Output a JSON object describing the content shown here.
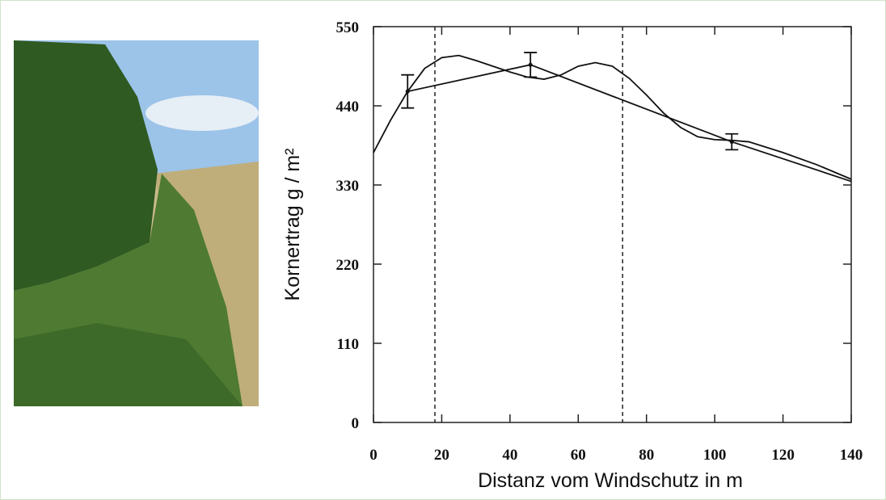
{
  "chart_data": {
    "type": "line",
    "xlabel": "Distanz vom Windschutz in m",
    "ylabel": "Kornertrag g / m²",
    "xlim": [
      0,
      140
    ],
    "xticks": [
      0,
      20,
      40,
      60,
      80,
      100,
      120,
      140
    ],
    "ylim": [
      0,
      550
    ],
    "yticks": [
      0,
      110,
      220,
      330,
      440,
      550
    ],
    "vlines": [
      18,
      73
    ],
    "color": "#111111",
    "series": [
      {
        "x": [
          0,
          5,
          10,
          15,
          20,
          25,
          30,
          35,
          40,
          45,
          50,
          55,
          60,
          65,
          70,
          75,
          80,
          85,
          90,
          95,
          100,
          105,
          110,
          120,
          130,
          140
        ],
        "values": [
          375,
          420,
          460,
          492,
          507,
          510,
          503,
          495,
          487,
          480,
          477,
          483,
          495,
          500,
          495,
          478,
          455,
          430,
          410,
          397,
          393,
          392,
          390,
          375,
          358,
          338
        ]
      },
      {
        "x": [
          10,
          46,
          105,
          140
        ],
        "values": [
          460,
          497,
          390,
          335
        ],
        "errors": [
          23,
          17,
          11,
          null
        ]
      }
    ]
  }
}
